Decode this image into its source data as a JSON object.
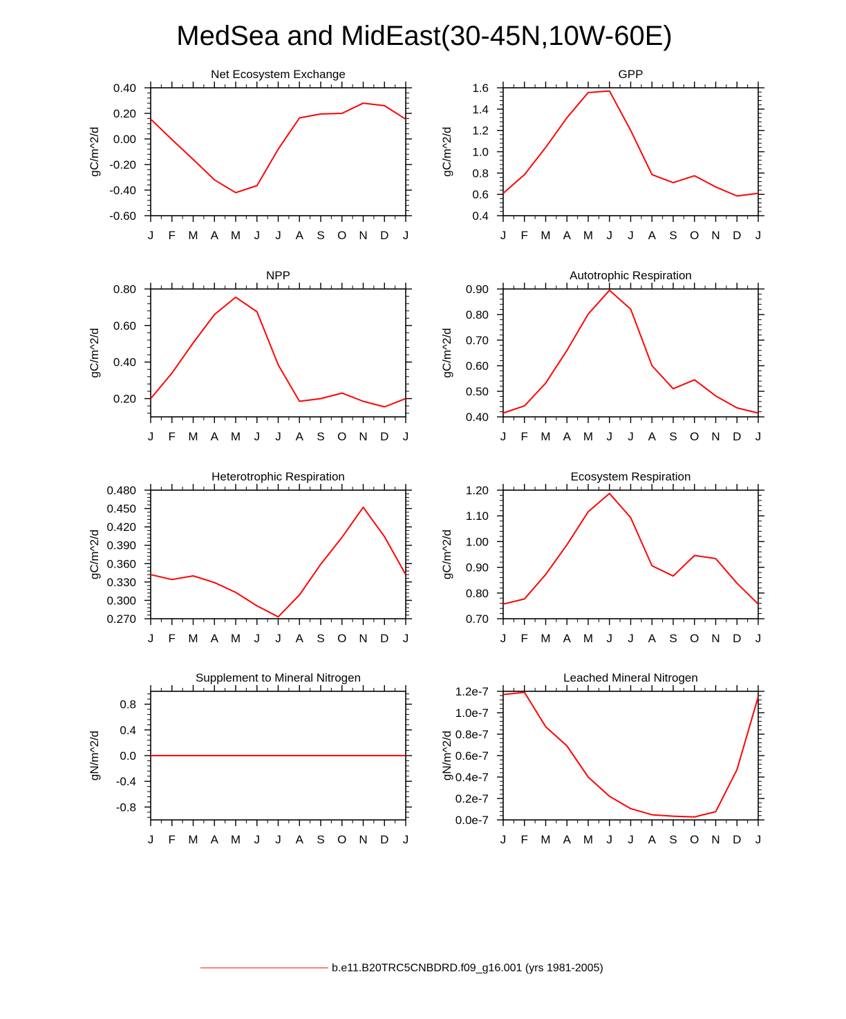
{
  "figure": {
    "title": "MedSea and MidEast(30-45N,10W-60E)",
    "line_color": "#ff0000",
    "axis_color": "#000000",
    "legend": {
      "label": "b.e11.B20TRC5CNBDRD.f09_g16.001 (yrs 1981-2005)",
      "line_color": "#ff0000"
    }
  },
  "chart_data": [
    {
      "type": "line",
      "title": "Net Ecosystem Exchange",
      "ylabel": "gC/m^2/d",
      "xlabel": "",
      "categories": [
        "J",
        "F",
        "M",
        "A",
        "M",
        "J",
        "J",
        "A",
        "S",
        "O",
        "N",
        "D",
        "J"
      ],
      "ylim": [
        -0.6,
        0.4
      ],
      "yticks": [
        -0.6,
        -0.4,
        -0.2,
        0.0,
        0.2,
        0.4
      ],
      "yticklabels": [
        "-0.60",
        "-0.40",
        "-0.20",
        "0.00",
        "0.20",
        "0.40"
      ],
      "series": [
        {
          "name": "b.e11.B20TRC5CNBDRD.f09_g16.001 (yrs 1981-2005)",
          "values": [
            0.155,
            -0.005,
            -0.16,
            -0.32,
            -0.42,
            -0.365,
            -0.08,
            0.165,
            0.195,
            0.2,
            0.28,
            0.26,
            0.155
          ]
        }
      ]
    },
    {
      "type": "line",
      "title": "GPP",
      "ylabel": "gC/m^2/d",
      "xlabel": "",
      "categories": [
        "J",
        "F",
        "M",
        "A",
        "M",
        "J",
        "J",
        "A",
        "S",
        "O",
        "N",
        "D",
        "J"
      ],
      "ylim": [
        0.4,
        1.6
      ],
      "yticks": [
        0.4,
        0.6,
        0.8,
        1.0,
        1.2,
        1.4,
        1.6
      ],
      "yticklabels": [
        "0.4",
        "0.6",
        "0.8",
        "1.0",
        "1.2",
        "1.4",
        "1.6"
      ],
      "series": [
        {
          "name": "b.e11.B20TRC5CNBDRD.f09_g16.001 (yrs 1981-2005)",
          "values": [
            0.61,
            0.785,
            1.04,
            1.32,
            1.555,
            1.57,
            1.2,
            0.785,
            0.71,
            0.775,
            0.67,
            0.585,
            0.61
          ]
        }
      ]
    },
    {
      "type": "line",
      "title": "NPP",
      "ylabel": "gC/m^2/d",
      "xlabel": "",
      "categories": [
        "J",
        "F",
        "M",
        "A",
        "M",
        "J",
        "J",
        "A",
        "S",
        "O",
        "N",
        "D",
        "J"
      ],
      "ylim": [
        0.1,
        0.8
      ],
      "yticks": [
        0.2,
        0.4,
        0.6,
        0.8
      ],
      "yticklabels": [
        "0.20",
        "0.40",
        "0.60",
        "0.80"
      ],
      "series": [
        {
          "name": "b.e11.B20TRC5CNBDRD.f09_g16.001 (yrs 1981-2005)",
          "values": [
            0.2,
            0.34,
            0.505,
            0.66,
            0.755,
            0.675,
            0.385,
            0.185,
            0.2,
            0.23,
            0.185,
            0.155,
            0.2
          ]
        }
      ]
    },
    {
      "type": "line",
      "title": "Autotrophic Respiration",
      "ylabel": "gC/m^2/d",
      "xlabel": "",
      "categories": [
        "J",
        "F",
        "M",
        "A",
        "M",
        "J",
        "J",
        "A",
        "S",
        "O",
        "N",
        "D",
        "J"
      ],
      "ylim": [
        0.4,
        0.9
      ],
      "yticks": [
        0.4,
        0.5,
        0.6,
        0.7,
        0.8,
        0.9
      ],
      "yticklabels": [
        "0.40",
        "0.50",
        "0.60",
        "0.70",
        "0.80",
        "0.90"
      ],
      "series": [
        {
          "name": "b.e11.B20TRC5CNBDRD.f09_g16.001 (yrs 1981-2005)",
          "values": [
            0.415,
            0.443,
            0.532,
            0.66,
            0.802,
            0.895,
            0.821,
            0.6,
            0.51,
            0.545,
            0.482,
            0.435,
            0.415
          ]
        }
      ]
    },
    {
      "type": "line",
      "title": "Heterotrophic Respiration",
      "ylabel": "gC/m^2/d",
      "xlabel": "",
      "categories": [
        "J",
        "F",
        "M",
        "A",
        "M",
        "J",
        "J",
        "A",
        "S",
        "O",
        "N",
        "D",
        "J"
      ],
      "ylim": [
        0.27,
        0.48
      ],
      "yticks": [
        0.27,
        0.3,
        0.33,
        0.36,
        0.39,
        0.42,
        0.45,
        0.48
      ],
      "yticklabels": [
        "0.270",
        "0.300",
        "0.330",
        "0.360",
        "0.390",
        "0.420",
        "0.450",
        "0.480"
      ],
      "series": [
        {
          "name": "b.e11.B20TRC5CNBDRD.f09_g16.001 (yrs 1981-2005)",
          "values": [
            0.342,
            0.334,
            0.34,
            0.329,
            0.313,
            0.291,
            0.273,
            0.309,
            0.359,
            0.403,
            0.452,
            0.404,
            0.342
          ]
        }
      ]
    },
    {
      "type": "line",
      "title": "Ecosystem Respiration",
      "ylabel": "gC/m^2/d",
      "xlabel": "",
      "categories": [
        "J",
        "F",
        "M",
        "A",
        "M",
        "J",
        "J",
        "A",
        "S",
        "O",
        "N",
        "D",
        "J"
      ],
      "ylim": [
        0.7,
        1.2
      ],
      "yticks": [
        0.7,
        0.8,
        0.9,
        1.0,
        1.1,
        1.2
      ],
      "yticklabels": [
        "0.70",
        "0.80",
        "0.90",
        "1.00",
        "1.10",
        "1.20"
      ],
      "series": [
        {
          "name": "b.e11.B20TRC5CNBDRD.f09_g16.001 (yrs 1981-2005)",
          "values": [
            0.757,
            0.777,
            0.872,
            0.988,
            1.116,
            1.187,
            1.093,
            0.906,
            0.866,
            0.946,
            0.934,
            0.838,
            0.757
          ]
        }
      ]
    },
    {
      "type": "line",
      "title": "Supplement to Mineral Nitrogen",
      "ylabel": "gN/m^2/d",
      "xlabel": "",
      "categories": [
        "J",
        "F",
        "M",
        "A",
        "M",
        "J",
        "J",
        "A",
        "S",
        "O",
        "N",
        "D",
        "J"
      ],
      "ylim": [
        -1.0,
        1.0
      ],
      "yticks": [
        -0.8,
        -0.4,
        0.0,
        0.4,
        0.8
      ],
      "yticklabels": [
        "-0.8",
        "-0.4",
        "0.0",
        "0.4",
        "0.8"
      ],
      "series": [
        {
          "name": "b.e11.B20TRC5CNBDRD.f09_g16.001 (yrs 1981-2005)",
          "values": [
            0,
            0,
            0,
            0,
            0,
            0,
            0,
            0,
            0,
            0,
            0,
            0,
            0
          ]
        }
      ]
    },
    {
      "type": "line",
      "title": "Leached Mineral Nitrogen",
      "ylabel": "gN/m^2/d",
      "xlabel": "",
      "categories": [
        "J",
        "F",
        "M",
        "A",
        "M",
        "J",
        "J",
        "A",
        "S",
        "O",
        "N",
        "D",
        "J"
      ],
      "ylim": [
        0.0,
        1.2e-07
      ],
      "yticks": [
        0.0,
        2e-08,
        4e-08,
        6e-08,
        8e-08,
        1e-07,
        1.2e-07
      ],
      "yticklabels": [
        "0.0e-7",
        "0.2e-7",
        "0.4e-7",
        "0.6e-7",
        "0.8e-7",
        "1.0e-7",
        "1.2e-7"
      ],
      "series": [
        {
          "name": "b.e11.B20TRC5CNBDRD.f09_g16.001 (yrs 1981-2005)",
          "values": [
            1.17e-07,
            1.19e-07,
            8.7e-08,
            6.9e-08,
            4e-08,
            2.2e-08,
            1.05e-08,
            4.8e-09,
            3.5e-09,
            2.8e-09,
            7.7e-09,
            4.7e-08,
            1.15e-07
          ]
        }
      ]
    }
  ]
}
